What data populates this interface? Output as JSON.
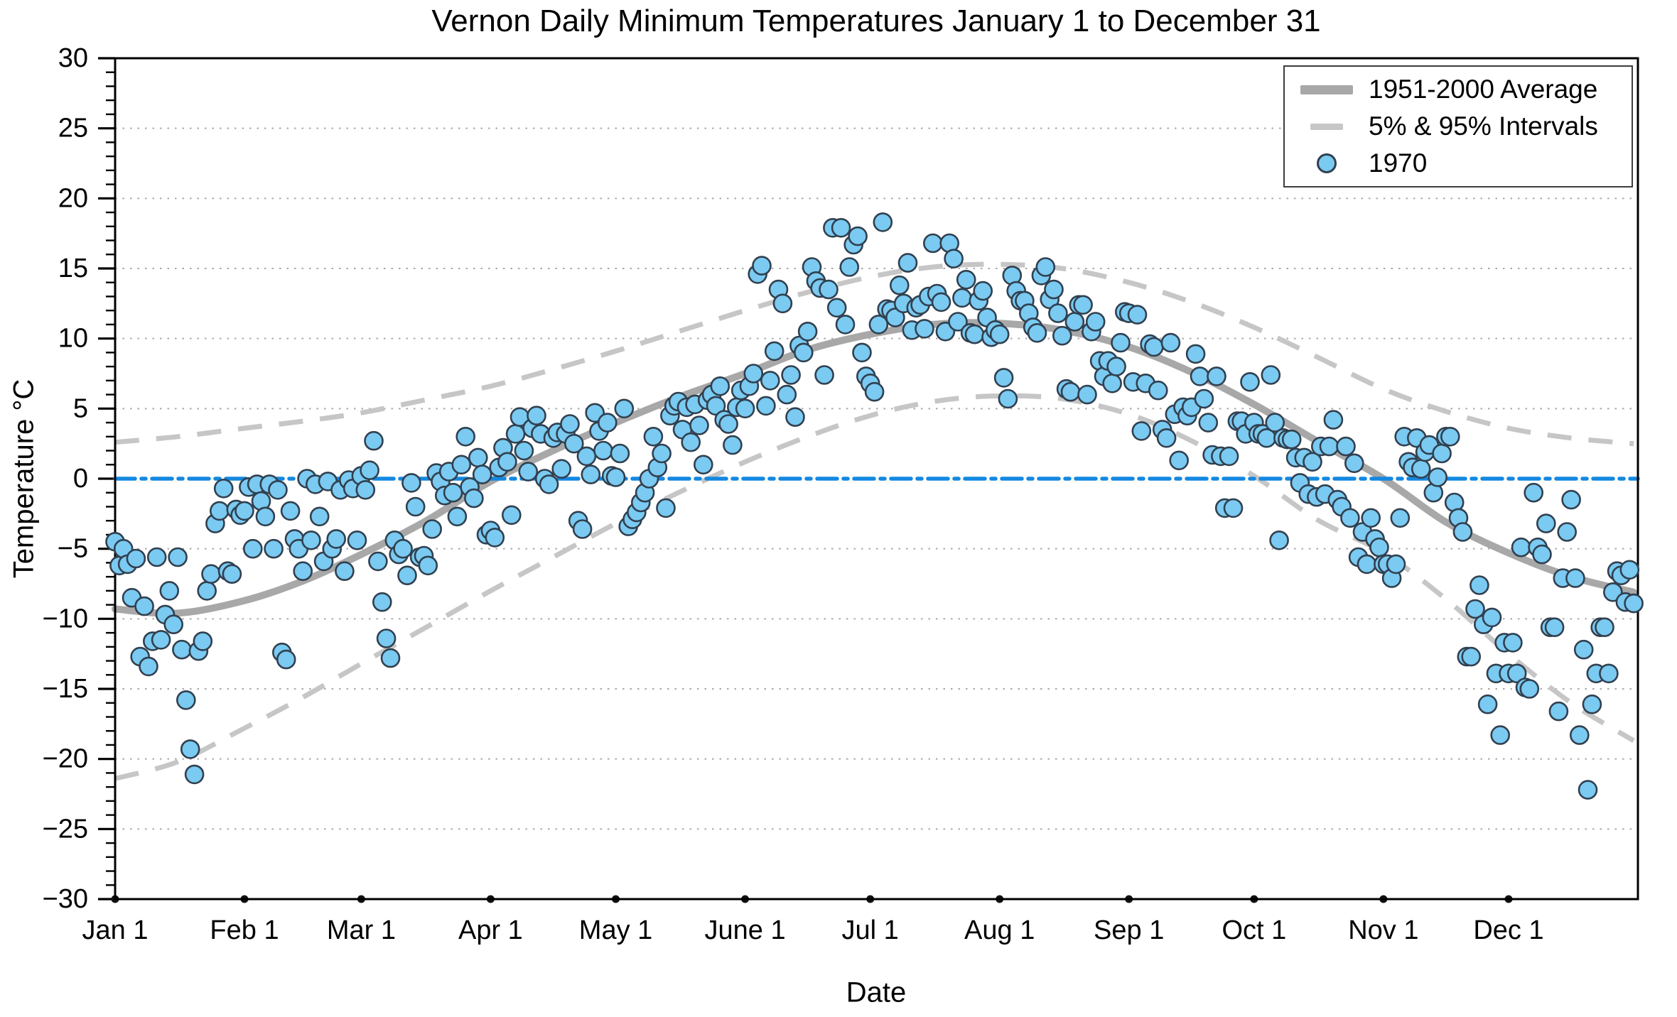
{
  "colors": {
    "background": "#ffffff",
    "frame": "#000000",
    "grid": "#9a9a9a",
    "average_line": "#a8a8a8",
    "interval_line": "#c6c6c6",
    "zero_line": "#1488e0",
    "scatter_fill": "#7acaf2",
    "scatter_edge": "#31404f",
    "month_dot": "#111111",
    "text": "#000000"
  },
  "chart_data": {
    "type": "scatter",
    "title": "Vernon Daily Minimum Temperatures January 1 to December 31",
    "xlabel": "Date",
    "ylabel": "Temperature °C",
    "x_unit": "day_of_year (0 = Jan 1)",
    "xlim_days": [
      0,
      365
    ],
    "ylim": [
      -30,
      30
    ],
    "grid": "horizontal dotted lines every 5°C",
    "legend_position": "upper right",
    "y_ticks": [
      {
        "value": 30,
        "label": "30"
      },
      {
        "value": 25,
        "label": "25"
      },
      {
        "value": 20,
        "label": "20"
      },
      {
        "value": 15,
        "label": "15"
      },
      {
        "value": 10,
        "label": "10"
      },
      {
        "value": 5,
        "label": "5"
      },
      {
        "value": 0,
        "label": "0"
      },
      {
        "value": -5,
        "label": "−5"
      },
      {
        "value": -10,
        "label": "−10"
      },
      {
        "value": -15,
        "label": "−15"
      },
      {
        "value": -20,
        "label": "−20"
      },
      {
        "value": -25,
        "label": "−25"
      },
      {
        "value": -30,
        "label": "−30"
      }
    ],
    "x_ticks": [
      {
        "day": 0,
        "label": "Jan 1"
      },
      {
        "day": 31,
        "label": "Feb 1"
      },
      {
        "day": 59,
        "label": "Mar 1"
      },
      {
        "day": 90,
        "label": "Apr 1"
      },
      {
        "day": 120,
        "label": "May 1"
      },
      {
        "day": 151,
        "label": "June 1"
      },
      {
        "day": 181,
        "label": "Jul 1"
      },
      {
        "day": 212,
        "label": "Aug 1"
      },
      {
        "day": 243,
        "label": "Sep 1"
      },
      {
        "day": 273,
        "label": "Oct 1"
      },
      {
        "day": 304,
        "label": "Nov 1"
      },
      {
        "day": 334,
        "label": "Dec 1"
      }
    ],
    "legend": [
      {
        "label": "1951-2000 Average",
        "swatch": "thick-gray-line"
      },
      {
        "label": "5% & 95% Intervals",
        "swatch": "dashed-gray-line"
      },
      {
        "label": "1970",
        "swatch": "blue-circle-marker"
      }
    ],
    "reference_line": {
      "y": 0,
      "style": "dash-dot",
      "color": "#1488e0"
    },
    "series": {
      "average_1951_2000": {
        "name": "1951-2000 Average",
        "style": "thick solid gray",
        "days": [
          0,
          15,
          31,
          45,
          59,
          74,
          90,
          105,
          120,
          135,
          151,
          166,
          181,
          196,
          211,
          227,
          243,
          258,
          273,
          288,
          304,
          319,
          334,
          349,
          364
        ],
        "values": [
          -9.3,
          -9.6,
          -8.7,
          -7.3,
          -5.4,
          -3.1,
          -0.2,
          2.0,
          4.0,
          5.8,
          7.5,
          9.2,
          10.3,
          11.0,
          11.1,
          10.6,
          9.4,
          7.6,
          5.3,
          2.7,
          0.0,
          -3.1,
          -5.3,
          -7.0,
          -8.1
        ]
      },
      "interval_95pct": {
        "name": "95% Interval",
        "style": "dashed gray",
        "days": [
          0,
          15,
          31,
          45,
          59,
          74,
          90,
          105,
          120,
          135,
          151,
          166,
          181,
          196,
          211,
          227,
          243,
          258,
          273,
          288,
          304,
          319,
          334,
          349,
          364
        ],
        "values": [
          2.6,
          3.0,
          3.6,
          4.1,
          4.7,
          5.6,
          6.6,
          7.8,
          9.1,
          10.5,
          12.0,
          13.3,
          14.4,
          15.1,
          15.3,
          15.0,
          14.0,
          12.6,
          10.8,
          8.7,
          6.4,
          4.8,
          3.6,
          2.9,
          2.5
        ]
      },
      "interval_5pct": {
        "name": "5% Interval",
        "style": "dashed gray",
        "days": [
          0,
          15,
          31,
          45,
          59,
          74,
          90,
          105,
          120,
          135,
          151,
          166,
          181,
          196,
          211,
          227,
          243,
          258,
          273,
          288,
          304,
          319,
          334,
          349,
          364
        ],
        "values": [
          -21.4,
          -20.2,
          -17.8,
          -15.6,
          -13.2,
          -10.7,
          -8.0,
          -5.6,
          -3.2,
          -1.0,
          1.2,
          3.0,
          4.5,
          5.5,
          5.9,
          5.7,
          4.6,
          2.7,
          0.2,
          -2.9,
          -5.3,
          -8.6,
          -12.5,
          -16.0,
          -18.7
        ]
      },
      "year_1970_daily_min": {
        "name": "1970",
        "style": "scatter",
        "values": [
          -4.5,
          -6.2,
          -5.0,
          -6.1,
          -8.5,
          -5.7,
          -12.7,
          -9.1,
          -13.4,
          -11.6,
          -5.6,
          -11.5,
          -9.7,
          -8.0,
          -10.4,
          -5.6,
          -12.2,
          -15.8,
          -19.3,
          -21.1,
          -12.3,
          -11.6,
          -8.0,
          -6.8,
          -3.2,
          -2.3,
          -0.7,
          -6.6,
          -6.8,
          -2.2,
          -2.6,
          -2.3,
          -0.6,
          -5.0,
          -0.4,
          -1.6,
          -2.7,
          -0.4,
          -5.0,
          -0.8,
          -12.4,
          -12.9,
          -2.3,
          -4.3,
          -5.0,
          -6.6,
          0.0,
          -4.4,
          -0.4,
          -2.7,
          -5.9,
          -0.2,
          -5.0,
          -4.3,
          -0.8,
          -6.6,
          -0.1,
          -0.7,
          -4.4,
          0.2,
          -0.8,
          0.6,
          2.7,
          -5.9,
          -8.8,
          -11.4,
          -12.8,
          -4.4,
          -5.4,
          -5.0,
          -6.9,
          -0.3,
          -2.0,
          -5.6,
          -5.5,
          -6.2,
          -3.6,
          0.4,
          -0.2,
          -1.2,
          0.5,
          -1.0,
          -2.7,
          1.0,
          3.0,
          -0.6,
          -1.4,
          1.5,
          0.3,
          -4.0,
          -3.7,
          -4.2,
          0.8,
          2.2,
          1.2,
          -2.6,
          3.2,
          4.4,
          2.0,
          0.5,
          3.6,
          4.5,
          3.2,
          0.0,
          -0.4,
          2.9,
          3.3,
          0.7,
          3.2,
          3.9,
          2.5,
          -3.0,
          -3.6,
          1.6,
          0.3,
          4.7,
          3.4,
          2.0,
          4.0,
          0.2,
          0.1,
          1.8,
          5.0,
          -3.4,
          -2.9,
          -2.4,
          -1.7,
          -1.0,
          0.0,
          3.0,
          0.8,
          1.8,
          -2.1,
          4.5,
          5.2,
          5.5,
          3.5,
          5.1,
          2.6,
          5.3,
          3.8,
          1.0,
          5.6,
          6.0,
          5.2,
          6.6,
          4.2,
          3.9,
          2.4,
          5.1,
          6.3,
          5.0,
          6.6,
          7.5,
          14.6,
          15.2,
          5.2,
          7.0,
          9.1,
          13.5,
          12.5,
          6.0,
          7.4,
          4.4,
          9.5,
          9.0,
          10.5,
          15.1,
          14.1,
          13.6,
          7.4,
          13.5,
          17.9,
          12.2,
          17.9,
          11.0,
          15.1,
          16.7,
          17.3,
          9.0,
          7.3,
          6.8,
          6.2,
          11.0,
          18.3,
          12.1,
          12.0,
          11.5,
          13.8,
          12.5,
          15.4,
          10.6,
          12.2,
          12.4,
          10.7,
          13.0,
          16.8,
          13.2,
          12.6,
          10.5,
          16.8,
          15.7,
          11.2,
          12.9,
          14.2,
          10.4,
          10.3,
          12.7,
          13.4,
          11.5,
          10.1,
          10.6,
          10.3,
          7.2,
          5.7,
          14.5,
          13.4,
          12.7,
          12.7,
          11.8,
          10.8,
          10.4,
          14.5,
          15.1,
          12.8,
          13.5,
          11.8,
          10.2,
          6.4,
          6.2,
          11.2,
          12.4,
          12.4,
          6.0,
          10.5,
          11.2,
          8.4,
          7.3,
          8.4,
          6.8,
          8.0,
          9.7,
          11.9,
          11.8,
          6.9,
          11.7,
          3.4,
          6.8,
          9.6,
          9.4,
          6.3,
          3.5,
          2.9,
          9.7,
          4.6,
          1.3,
          5.1,
          4.5,
          5.1,
          8.9,
          7.3,
          5.7,
          4.0,
          1.7,
          7.3,
          1.6,
          -2.1,
          1.6,
          -2.1,
          4.1,
          4.1,
          3.2,
          6.9,
          4.0,
          3.2,
          3.2,
          2.9,
          7.4,
          4.0,
          -4.4,
          2.9,
          2.8,
          2.8,
          1.5,
          -0.3,
          1.5,
          -1.1,
          1.2,
          -1.3,
          2.3,
          -1.1,
          2.3,
          4.2,
          -1.5,
          -2.0,
          2.3,
          -2.8,
          1.1,
          -5.6,
          -3.8,
          -6.1,
          -2.8,
          -4.3,
          -4.9,
          -6.1,
          -6.1,
          -7.1,
          -6.1,
          -2.8,
          3.0,
          1.2,
          0.8,
          2.9,
          0.7,
          1.9,
          2.4,
          -1.0,
          0.1,
          1.8,
          3.0,
          3.0,
          -1.7,
          -2.8,
          -3.8,
          -12.7,
          -12.7,
          -9.3,
          -7.6,
          -10.4,
          -16.1,
          -9.9,
          -13.9,
          -18.3,
          -11.7,
          -13.9,
          -11.7,
          -13.9,
          -4.9,
          -14.9,
          -15.0,
          -1.0,
          -4.9,
          -5.4,
          -3.2,
          -10.6,
          -10.6,
          -16.6,
          -7.1,
          -3.8,
          -1.5,
          -7.1,
          -18.3,
          -12.2,
          -22.2,
          -16.1,
          -13.9,
          -10.6,
          -10.6,
          -13.9,
          -8.1,
          -6.6,
          -6.9,
          -8.8,
          -6.5,
          -8.9
        ]
      }
    }
  }
}
